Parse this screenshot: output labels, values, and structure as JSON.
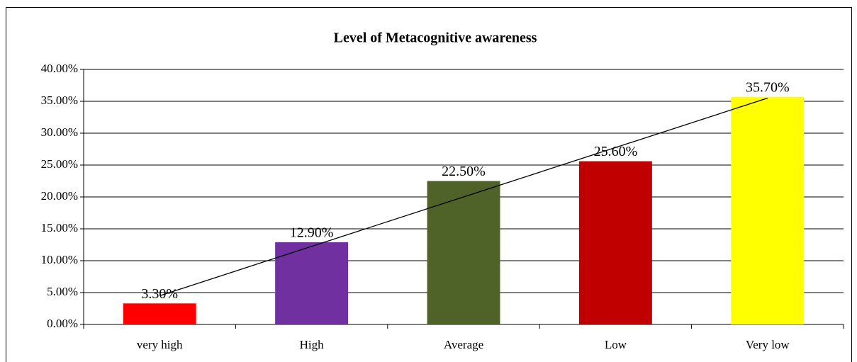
{
  "chart_data": {
    "type": "bar",
    "title": "Level of Metacognitive awareness",
    "categories": [
      "very high",
      "High",
      "Average",
      "Low",
      "Very low"
    ],
    "values": [
      3.3,
      12.9,
      22.5,
      25.6,
      35.7
    ],
    "value_labels": [
      "3.30%",
      "12.90%",
      "22.50%",
      "25.60%",
      "35.70%"
    ],
    "colors": [
      "#ff0000",
      "#7030a0",
      "#4f6228",
      "#c00000",
      "#ffff00"
    ],
    "ylim": [
      0,
      40
    ],
    "yticks": [
      {
        "value": 0,
        "label": "0.00%"
      },
      {
        "value": 5,
        "label": "5.00%"
      },
      {
        "value": 10,
        "label": "10.00%"
      },
      {
        "value": 15,
        "label": "15.00%"
      },
      {
        "value": 20,
        "label": "20.00%"
      },
      {
        "value": 25,
        "label": "25.00%"
      },
      {
        "value": 30,
        "label": "30.00%"
      },
      {
        "value": 35,
        "label": "35.00%"
      },
      {
        "value": 40,
        "label": "40.00%"
      }
    ],
    "grid": true,
    "trendline": "linear"
  }
}
